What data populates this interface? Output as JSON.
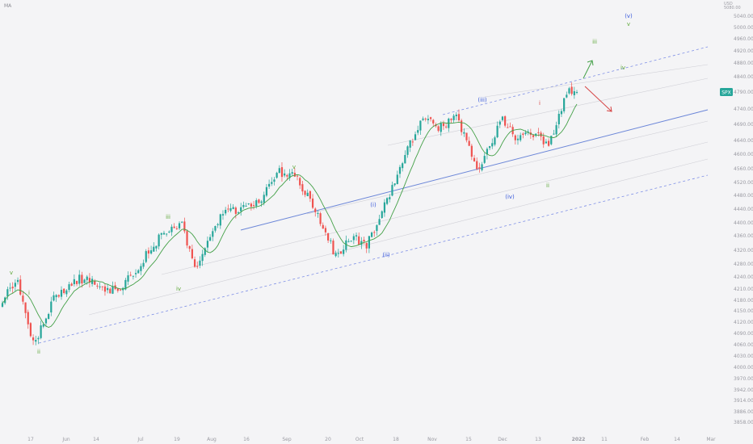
{
  "indicator_label": "MA",
  "axis_top_labels": [
    "USD",
    "5080.00"
  ],
  "symbol_tag": "SPX",
  "colors": {
    "background": "#f4f4f6",
    "bull": "#26a69a",
    "bear": "#ef5350",
    "ma": "#43a047",
    "channel_mid": "#6b86d8",
    "channel_edge": "#7e8fe6",
    "channel_inner": "#cfcfd6",
    "wave_blue": "#3b5bdb",
    "wave_green": "#5fa83a",
    "wave_red": "#d64545",
    "tag_bg": "#26a69a"
  },
  "chart_data": {
    "type": "candlestick",
    "y_axis": {
      "ticks": [
        5040,
        5000,
        4960,
        4920,
        4880,
        4840,
        4790,
        4740,
        4690,
        4640,
        4600,
        4560,
        4520,
        4480,
        4440,
        4400,
        4360,
        4320,
        4280,
        4240,
        4210,
        4180,
        4150,
        4120,
        4090,
        4060,
        4030,
        4000,
        3970,
        3942,
        3914,
        3886,
        3858
      ],
      "range": [
        3840,
        5080
      ]
    },
    "x_axis": {
      "tick_labels": [
        "17",
        "Jun",
        "14",
        "Jul",
        "19",
        "Aug",
        "16",
        "Sep",
        "20",
        "Oct",
        "18",
        "Nov",
        "15",
        "Dec",
        "13",
        "2022",
        "11",
        "Feb",
        "14",
        "Mar"
      ]
    },
    "last_price": 4790,
    "wave_labels": [
      {
        "text": "v",
        "color": "green"
      },
      {
        "text": "i",
        "color": "green"
      },
      {
        "text": "ii",
        "color": "green"
      },
      {
        "text": "iii",
        "color": "green"
      },
      {
        "text": "iv",
        "color": "green"
      },
      {
        "text": "v",
        "color": "green"
      },
      {
        "text": "(i)",
        "color": "blue"
      },
      {
        "text": "(ii)",
        "color": "blue"
      },
      {
        "text": "(iii)",
        "color": "blue"
      },
      {
        "text": "(iv)",
        "color": "blue"
      },
      {
        "text": "i",
        "color": "red"
      },
      {
        "text": "ii",
        "color": "green"
      },
      {
        "text": "iii",
        "color": "green"
      },
      {
        "text": "iv",
        "color": "green"
      },
      {
        "text": "(v)",
        "color": "blue"
      },
      {
        "text": "v",
        "color": "green"
      }
    ]
  }
}
